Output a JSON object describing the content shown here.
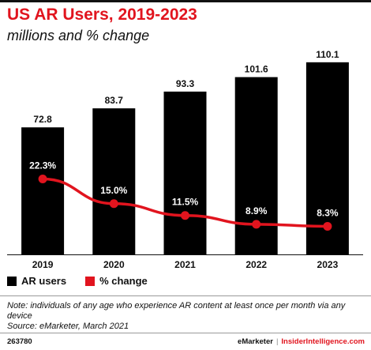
{
  "chart_data": {
    "type": "bar",
    "title": "US AR Users, 2019-2023",
    "subtitle": "millions and % change",
    "categories": [
      "2019",
      "2020",
      "2021",
      "2022",
      "2023"
    ],
    "series": [
      {
        "name": "AR users",
        "type": "bar",
        "values": [
          72.8,
          83.7,
          93.3,
          101.6,
          110.1
        ],
        "labels": [
          "72.8",
          "83.7",
          "93.3",
          "101.6",
          "110.1"
        ],
        "color": "#000000"
      },
      {
        "name": "% change",
        "type": "line",
        "values": [
          22.3,
          15.0,
          11.5,
          8.9,
          8.3
        ],
        "labels": [
          "22.3%",
          "15.0%",
          "11.5%",
          "8.9%",
          "8.3%"
        ],
        "color": "#e1141e"
      }
    ],
    "ylim": [
      0,
      115
    ],
    "y2lim": [
      0,
      60
    ],
    "grid": false,
    "legend": "bottom-left"
  },
  "note": "Note: individuals of any age who experience AR content at least once per month via any device",
  "source": "Source: eMarketer, March 2021",
  "footer": {
    "chart_id": "263780",
    "brand_left": "eMarketer",
    "separator": "|",
    "brand_right": "InsiderIntelligence.com"
  }
}
